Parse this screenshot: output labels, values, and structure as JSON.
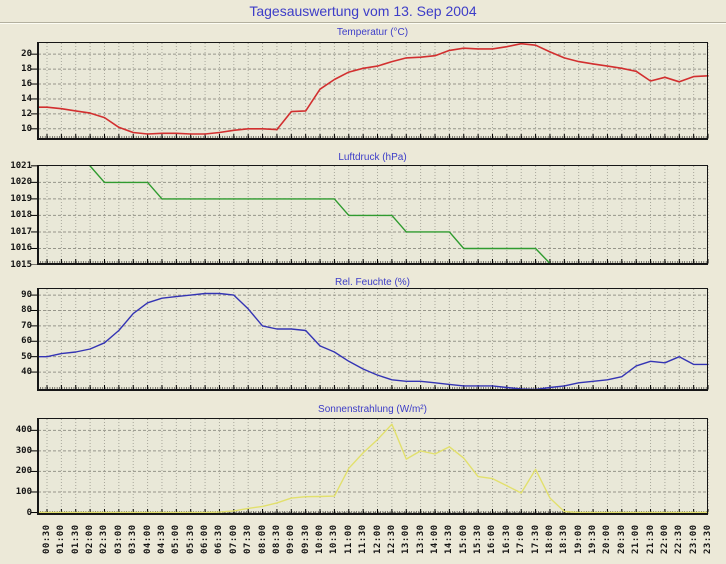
{
  "page": {
    "title": "Tagesauswertung vom 13. Sep 2004",
    "background_color": "#ece9d8",
    "title_color": "#3d3dc8"
  },
  "x_axis": {
    "tick_labels": [
      "00:30",
      "01:00",
      "01:30",
      "02:00",
      "02:30",
      "03:00",
      "03:30",
      "04:00",
      "04:30",
      "05:00",
      "05:30",
      "06:00",
      "06:30",
      "07:00",
      "07:30",
      "08:00",
      "08:30",
      "09:00",
      "09:30",
      "10:00",
      "10:30",
      "11:00",
      "11:30",
      "12:00",
      "12:30",
      "13:00",
      "13:30",
      "14:00",
      "14:30",
      "15:00",
      "15:30",
      "16:00",
      "16:30",
      "17:00",
      "17:30",
      "18:00",
      "18:30",
      "19:00",
      "19:30",
      "20:00",
      "20:30",
      "21:00",
      "21:30",
      "22:00",
      "22:30",
      "23:00",
      "23:30"
    ]
  },
  "chart_data": [
    {
      "type": "line",
      "title": "Temperatur (°C)",
      "color": "#d22f2f",
      "y_ticks": [
        20,
        18,
        16,
        14,
        12,
        10
      ],
      "ylim": [
        8.5,
        21.63
      ],
      "grid": true,
      "legend": "none",
      "values": [
        12.9,
        12.7,
        12.4,
        12.1,
        11.5,
        10.2,
        9.5,
        9.3,
        9.4,
        9.4,
        9.3,
        9.3,
        9.5,
        9.8,
        10.0,
        10.0,
        9.9,
        12.3,
        12.4,
        15.3,
        16.6,
        17.6,
        18.1,
        18.4,
        19.0,
        19.5,
        19.6,
        19.8,
        20.5,
        20.8,
        20.7,
        20.7,
        21.0,
        21.4,
        21.2,
        20.3,
        19.5,
        19.0,
        18.7,
        18.4,
        18.1,
        17.7,
        16.4,
        16.9,
        16.3,
        17.0,
        17.1
      ]
    },
    {
      "type": "line",
      "title": "Luftdruck (hPa)",
      "color": "#2f9b2f",
      "y_ticks": [
        1021,
        1020,
        1019,
        1018,
        1017,
        1016,
        1015
      ],
      "ylim": [
        1015,
        1021.05
      ],
      "grid": true,
      "legend": "none",
      "values": [
        null,
        null,
        null,
        1021,
        1020,
        1020,
        1020,
        1020,
        1019,
        1019,
        1019,
        1019,
        1019,
        1019,
        1019,
        1019,
        1019,
        1019,
        1019,
        1019,
        1019,
        1018,
        1018,
        1018,
        1018,
        1017,
        1017,
        1017,
        1017,
        1016,
        1016,
        1016,
        1016,
        1016,
        1016,
        1015,
        null,
        null,
        null,
        null,
        null,
        null,
        null,
        null,
        null,
        null,
        null
      ]
    },
    {
      "type": "line",
      "title": "Rel. Feuchte (%)",
      "color": "#3434b4",
      "y_ticks": [
        90,
        80,
        70,
        60,
        50,
        40
      ],
      "ylim": [
        27.7,
        94.6
      ],
      "grid": true,
      "legend": "none",
      "values": [
        50,
        52,
        53,
        55,
        59,
        67,
        78,
        85,
        88,
        89,
        90,
        91,
        91,
        90,
        81,
        70,
        68,
        68,
        67,
        57,
        53,
        47,
        42,
        38,
        35,
        34,
        34,
        33,
        32,
        31,
        31,
        31,
        30,
        29,
        28,
        30,
        31,
        33,
        34,
        35,
        37,
        44,
        47,
        46,
        50,
        45,
        45
      ]
    },
    {
      "type": "line",
      "title": "Sonnenstrahlung (W/m²)",
      "color": "#e2e06c",
      "y_ticks": [
        400,
        300,
        200,
        100,
        0
      ],
      "ylim": [
        -12,
        460
      ],
      "grid": true,
      "legend": "none",
      "values": [
        0,
        0,
        0,
        0,
        0,
        0,
        0,
        0,
        0,
        0,
        0,
        0,
        2,
        8,
        20,
        30,
        47,
        70,
        77,
        78,
        80,
        215,
        290,
        355,
        430,
        260,
        300,
        285,
        320,
        265,
        175,
        165,
        130,
        95,
        210,
        70,
        5,
        0,
        0,
        0,
        0,
        0,
        0,
        0,
        0,
        0,
        0
      ]
    }
  ]
}
